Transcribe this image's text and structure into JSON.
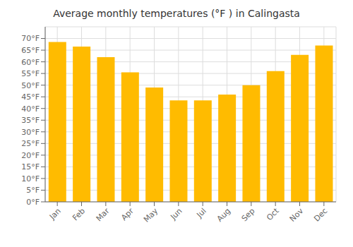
{
  "chart_data": {
    "type": "bar",
    "title": "Average monthly temperatures (°F ) in Calingasta",
    "categories": [
      "Jan",
      "Feb",
      "Mar",
      "Apr",
      "May",
      "Jun",
      "Jul",
      "Aug",
      "Sep",
      "Oct",
      "Nov",
      "Dec"
    ],
    "values": [
      68.5,
      66.5,
      62.0,
      55.5,
      49.0,
      43.5,
      43.5,
      46.0,
      50.0,
      56.0,
      63.0,
      67.0
    ],
    "color": "#FFBB00",
    "ylim": [
      0,
      75
    ],
    "yticks": [
      {
        "value": 0,
        "label": "0°F"
      },
      {
        "value": 5,
        "label": "5°F"
      },
      {
        "value": 10,
        "label": "10°F"
      },
      {
        "value": 15,
        "label": "15°F"
      },
      {
        "value": 20,
        "label": "20°F"
      },
      {
        "value": 25,
        "label": "25°F"
      },
      {
        "value": 30,
        "label": "30°F"
      },
      {
        "value": 35,
        "label": "35°F"
      },
      {
        "value": 40,
        "label": "40°F"
      },
      {
        "value": 45,
        "label": "45°F"
      },
      {
        "value": 50,
        "label": "50°F"
      },
      {
        "value": 55,
        "label": "55°F"
      },
      {
        "value": 60,
        "label": "60°F"
      },
      {
        "value": 65,
        "label": "65°F"
      },
      {
        "value": 70,
        "label": "70°F"
      }
    ],
    "grid": true
  }
}
